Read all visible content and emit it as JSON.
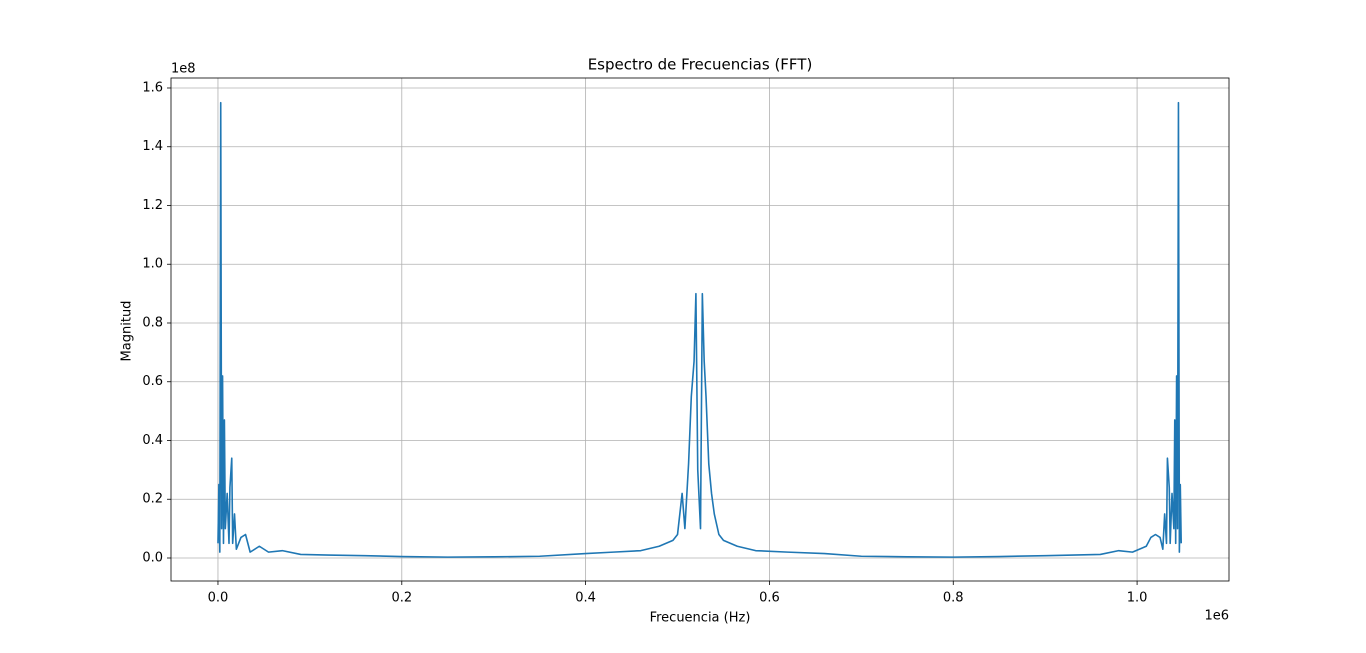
{
  "chart_data": {
    "type": "line",
    "title": "Espectro de Frecuencias (FFT)",
    "xlabel": "Frecuencia (Hz)",
    "ylabel": "Magnitud",
    "x_offset_label": "1e6",
    "y_offset_label": "1e8",
    "color": "#1f77b4",
    "grid": true,
    "xlim": [
      -0.0511,
      1.1
    ],
    "ylim": [
      -0.0783,
      1.634
    ],
    "xticks": [
      {
        "value": 0,
        "label": "0.0"
      },
      0.2,
      0.4,
      0.6,
      0.8,
      {
        "value": 1,
        "label": "1.0"
      }
    ],
    "yticks": [
      {
        "value": 0,
        "label": "0.0"
      },
      0.2,
      0.4,
      0.6,
      0.8,
      {
        "value": 1,
        "label": "1.0"
      },
      1.2,
      1.4,
      1.6
    ],
    "x": [
      0.0,
      0.001,
      0.002,
      0.003,
      0.004,
      0.005,
      0.006,
      0.007,
      0.008,
      0.01,
      0.012,
      0.013,
      0.015,
      0.016,
      0.018,
      0.02,
      0.025,
      0.03,
      0.035,
      0.045,
      0.055,
      0.07,
      0.09,
      0.12,
      0.16,
      0.2,
      0.25,
      0.3,
      0.35,
      0.4,
      0.43,
      0.46,
      0.48,
      0.495,
      0.5,
      0.505,
      0.508,
      0.512,
      0.515,
      0.518,
      0.52,
      0.522,
      0.525,
      0.527,
      0.529,
      0.531,
      0.534,
      0.537,
      0.54,
      0.545,
      0.55,
      0.565,
      0.585,
      0.62,
      0.66,
      0.7,
      0.75,
      0.8,
      0.85,
      0.9,
      0.93,
      0.96,
      0.98,
      0.995,
      1.01,
      1.015,
      1.02,
      1.025,
      1.028,
      1.03,
      1.032,
      1.033,
      1.035,
      1.036,
      1.038,
      1.04,
      1.041,
      1.042,
      1.043,
      1.044,
      1.045,
      1.046,
      1.047,
      1.048
    ],
    "values": [
      0.05,
      0.25,
      0.02,
      1.55,
      0.1,
      0.62,
      0.05,
      0.47,
      0.1,
      0.22,
      0.05,
      0.24,
      0.34,
      0.05,
      0.15,
      0.03,
      0.07,
      0.08,
      0.02,
      0.04,
      0.02,
      0.025,
      0.012,
      0.01,
      0.008,
      0.005,
      0.003,
      0.004,
      0.006,
      0.015,
      0.02,
      0.025,
      0.04,
      0.06,
      0.08,
      0.22,
      0.1,
      0.32,
      0.55,
      0.67,
      0.9,
      0.3,
      0.1,
      0.9,
      0.67,
      0.55,
      0.32,
      0.22,
      0.15,
      0.08,
      0.06,
      0.04,
      0.025,
      0.02,
      0.015,
      0.006,
      0.004,
      0.003,
      0.005,
      0.008,
      0.01,
      0.012,
      0.025,
      0.02,
      0.04,
      0.07,
      0.08,
      0.07,
      0.03,
      0.15,
      0.05,
      0.34,
      0.24,
      0.05,
      0.22,
      0.1,
      0.47,
      0.05,
      0.62,
      0.1,
      1.55,
      0.02,
      0.25,
      0.05
    ]
  }
}
